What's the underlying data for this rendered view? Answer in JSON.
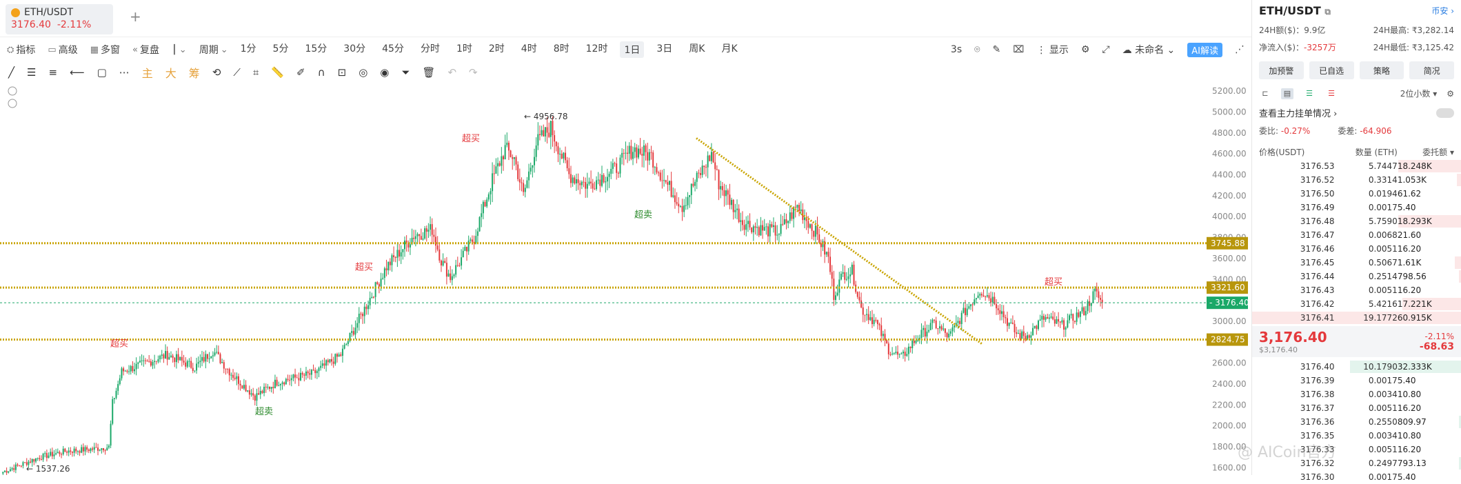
{
  "tab": {
    "symbol": "ETH/USDT",
    "price": "3176.40",
    "change": "-2.11%",
    "add": "+"
  },
  "toolbar": {
    "left_items": [
      "指标",
      "高级",
      "多窗",
      "复盘"
    ],
    "period_label": "周期",
    "periods": [
      "1分",
      "5分",
      "15分",
      "30分",
      "45分",
      "分时",
      "1时",
      "2时",
      "4时",
      "8时",
      "12时",
      "1日",
      "3日",
      "周K",
      "月K"
    ],
    "active_period": "1日",
    "right_items": [
      "3s",
      "显示",
      "未命名"
    ],
    "ai_label": "AI解读"
  },
  "draw_toolbar": {
    "labels": [
      "主",
      "大",
      "筹"
    ]
  },
  "colors": {
    "up": "#1aa868",
    "down": "#e4393c",
    "level_line": "#c9a400",
    "accent": "#2a7de1"
  },
  "chart_data": {
    "type": "candlestick",
    "title": "ETH/USDT",
    "interval": "1日",
    "y_axis": {
      "ticks": [
        1600,
        1800,
        2000,
        2200,
        2400,
        2600,
        2800,
        3000,
        3200,
        3400,
        3600,
        3800,
        4000,
        4200,
        4400,
        4600,
        4800,
        5000,
        5200
      ],
      "range": [
        1530,
        5280
      ]
    },
    "grid": false,
    "current_price": 3176.4,
    "high_label": {
      "value": "4956.78",
      "text": "← 4956.78"
    },
    "low_label": {
      "value": "1537.26",
      "text": "← 1537.26"
    },
    "horizontal_levels": [
      {
        "value": 3745.88,
        "label": "3745.88"
      },
      {
        "value": 3321.6,
        "label": "3321.60"
      },
      {
        "value": 2824.75,
        "label": "2824.75"
      }
    ],
    "current_price_label": "3176.40",
    "trendline": {
      "from_value": 4750,
      "to_value": 2780
    },
    "annotations": [
      {
        "text": "超买",
        "kind": "overbought",
        "price": 2760
      },
      {
        "text": "超卖",
        "kind": "oversold",
        "price": 2110
      },
      {
        "text": "超买",
        "kind": "overbought",
        "price": 3490
      },
      {
        "text": "超买",
        "kind": "overbought",
        "price": 4720
      },
      {
        "text": "超卖",
        "kind": "oversold",
        "price": 3990
      },
      {
        "text": "超买",
        "kind": "overbought",
        "price": 3350
      }
    ],
    "waypoints": [
      [
        0,
        1560
      ],
      [
        20,
        1700
      ],
      [
        35,
        1760
      ],
      [
        50,
        1780
      ],
      [
        58,
        1800
      ],
      [
        60,
        2220
      ],
      [
        65,
        2520
      ],
      [
        75,
        2580
      ],
      [
        90,
        2680
      ],
      [
        105,
        2560
      ],
      [
        115,
        2720
      ],
      [
        125,
        2500
      ],
      [
        138,
        2280
      ],
      [
        150,
        2420
      ],
      [
        170,
        2500
      ],
      [
        185,
        2680
      ],
      [
        195,
        3020
      ],
      [
        210,
        3520
      ],
      [
        225,
        3820
      ],
      [
        235,
        3880
      ],
      [
        240,
        3580
      ],
      [
        245,
        3420
      ],
      [
        258,
        3800
      ],
      [
        268,
        4350
      ],
      [
        275,
        4650
      ],
      [
        280,
        4560
      ],
      [
        285,
        4200
      ],
      [
        292,
        4700
      ],
      [
        300,
        4850
      ],
      [
        310,
        4400
      ],
      [
        320,
        4300
      ],
      [
        335,
        4450
      ],
      [
        345,
        4650
      ],
      [
        355,
        4580
      ],
      [
        362,
        4350
      ],
      [
        368,
        4200
      ],
      [
        372,
        4100
      ],
      [
        378,
        4300
      ],
      [
        388,
        4600
      ],
      [
        392,
        4320
      ],
      [
        400,
        4100
      ],
      [
        405,
        3950
      ],
      [
        415,
        3880
      ],
      [
        425,
        3850
      ],
      [
        435,
        4100
      ],
      [
        445,
        3850
      ],
      [
        452,
        3600
      ],
      [
        455,
        3250
      ],
      [
        460,
        3450
      ],
      [
        465,
        3480
      ],
      [
        470,
        3120
      ],
      [
        478,
        2990
      ],
      [
        485,
        2730
      ],
      [
        492,
        2650
      ],
      [
        500,
        2830
      ],
      [
        510,
        2980
      ],
      [
        518,
        2850
      ],
      [
        525,
        3050
      ],
      [
        535,
        3300
      ],
      [
        543,
        3200
      ],
      [
        550,
        3000
      ],
      [
        555,
        2880
      ],
      [
        560,
        2850
      ],
      [
        570,
        3030
      ],
      [
        580,
        2960
      ],
      [
        592,
        3100
      ],
      [
        598,
        3276
      ],
      [
        602,
        3176.4
      ]
    ]
  },
  "panel": {
    "title": "ETH/USDT",
    "exchange": "币安",
    "stats": [
      {
        "label": "24H额($)：",
        "value": "9.9亿",
        "label2": "24H最高:",
        "value2": "₹3,282.14"
      },
      {
        "label": "净流入($)：",
        "value": "-3257万",
        "label2": "24H最低:",
        "value2": "₹3,125.42"
      }
    ],
    "buttons": [
      "加预警",
      "已自选",
      "策略",
      "简况"
    ],
    "precision": "2位小数",
    "main_orders": "查看主力挂单情况",
    "weibi_label": "委比:",
    "weibi_value": "-0.27%",
    "weicha_label": "委差:",
    "weicha_value": "-64.906",
    "book_headers": [
      "价格(USDT)",
      "数量 (ETH)",
      "委托额"
    ],
    "asks": [
      {
        "price": "3176.53",
        "qty": "5.7447",
        "amt": "18.248K",
        "fill": 0.3
      },
      {
        "price": "3176.52",
        "qty": "0.3314",
        "amt": "1.053K",
        "fill": 0.02
      },
      {
        "price": "3176.50",
        "qty": "0.0194",
        "amt": "61.62",
        "fill": 0.0
      },
      {
        "price": "3176.49",
        "qty": "0.0017",
        "amt": "5.40",
        "fill": 0.0
      },
      {
        "price": "3176.48",
        "qty": "5.7590",
        "amt": "18.293K",
        "fill": 0.3
      },
      {
        "price": "3176.47",
        "qty": "0.0068",
        "amt": "21.60",
        "fill": 0.0
      },
      {
        "price": "3176.46",
        "qty": "0.0051",
        "amt": "16.20",
        "fill": 0.0
      },
      {
        "price": "3176.45",
        "qty": "0.5067",
        "amt": "1.61K",
        "fill": 0.03
      },
      {
        "price": "3176.44",
        "qty": "0.2514",
        "amt": "798.56",
        "fill": 0.01
      },
      {
        "price": "3176.43",
        "qty": "0.0051",
        "amt": "16.20",
        "fill": 0.0
      },
      {
        "price": "3176.42",
        "qty": "5.4216",
        "amt": "17.221K",
        "fill": 0.28
      },
      {
        "price": "3176.41",
        "qty": "19.1772",
        "amt": "60.915K",
        "fill": 1.0
      }
    ],
    "last_price": "3,176.40",
    "last_price_usd": "$3,176.40",
    "last_change_pct": "-2.11%",
    "last_change_abs": "-68.63",
    "bids": [
      {
        "price": "3176.40",
        "qty": "10.1790",
        "amt": "32.333K",
        "fill": 0.53
      },
      {
        "price": "3176.39",
        "qty": "0.0017",
        "amt": "5.40",
        "fill": 0.0
      },
      {
        "price": "3176.38",
        "qty": "0.0034",
        "amt": "10.80",
        "fill": 0.0
      },
      {
        "price": "3176.37",
        "qty": "0.0051",
        "amt": "16.20",
        "fill": 0.0
      },
      {
        "price": "3176.36",
        "qty": "0.2550",
        "amt": "809.97",
        "fill": 0.01
      },
      {
        "price": "3176.35",
        "qty": "0.0034",
        "amt": "10.80",
        "fill": 0.0
      },
      {
        "price": "3176.33",
        "qty": "0.0051",
        "amt": "16.20",
        "fill": 0.0
      },
      {
        "price": "3176.32",
        "qty": "0.2497",
        "amt": "793.13",
        "fill": 0.01
      },
      {
        "price": "3176.30",
        "qty": "0.0017",
        "amt": "5.40",
        "fill": 0.0
      }
    ],
    "watermark": "@ AICoin官方"
  }
}
